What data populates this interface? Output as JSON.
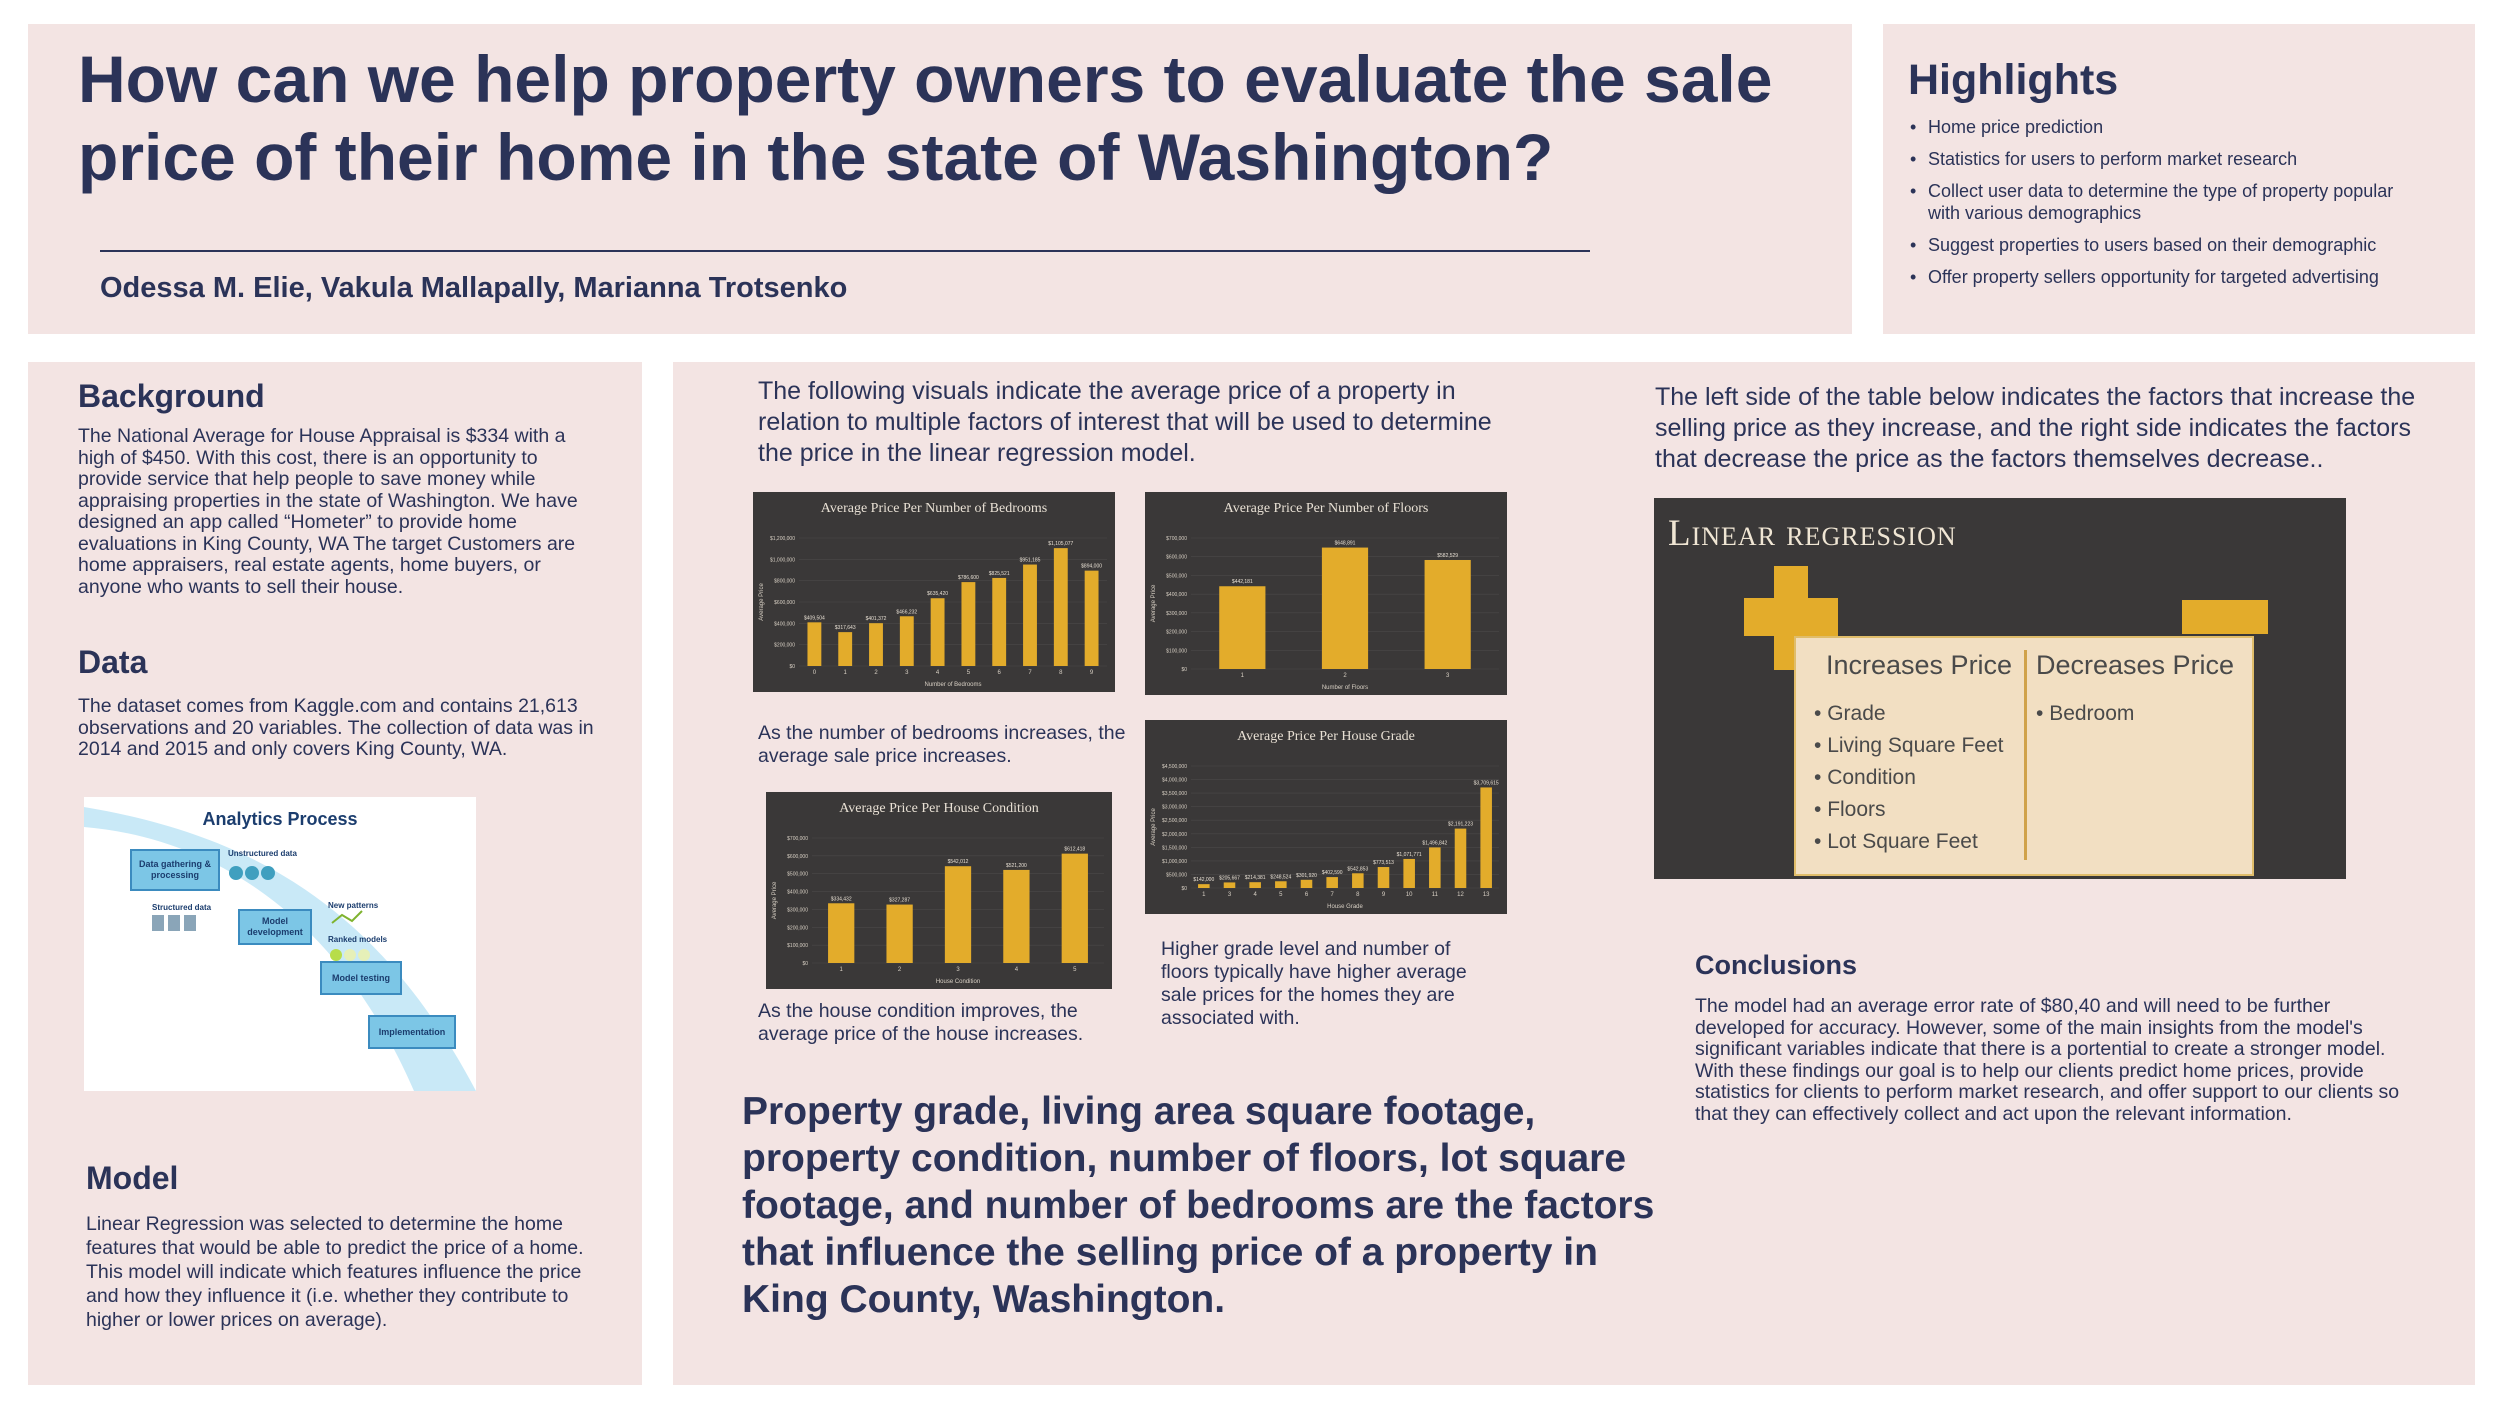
{
  "header": {
    "title": "How can we help property owners to evaluate the sale price of their home in the state of Washington?",
    "authors": "Odessa M. Elie, Vakula Mallapally, Marianna Trotsenko"
  },
  "highlights": {
    "title": "Highlights",
    "items": [
      "Home price prediction",
      "Statistics for users to perform market research",
      "Collect user data to determine the type of property popular with various demographics",
      "Suggest properties to users based on their demographic",
      "Offer property sellers opportunity for targeted advertising"
    ]
  },
  "background": {
    "heading": "Background",
    "text": "The National Average for House Appraisal is $334 with a high of $450. With this cost, there is an  opportunity to provide service that help people to save money while appraising properties in the state of Washington. We have designed an app called “Hometer” to provide home evaluations in  King County, WA The target Customers are home appraisers, real estate agents, home buyers, or anyone who wants to sell their house."
  },
  "data_section": {
    "heading": "Data",
    "text": "The dataset comes from Kaggle.com and contains 21,613 observations and 20 variables. The collection of data was in 2014 and 2015 and only covers King County, WA."
  },
  "analytics": {
    "title": "Analytics Process",
    "steps": [
      "Data gathering & processing",
      "Model development",
      "Model testing",
      "Implementation"
    ],
    "labels": [
      "Unstructured data",
      "Structured data",
      "New patterns",
      "Ranked models"
    ]
  },
  "model": {
    "heading": "Model",
    "text": "Linear Regression was selected to determine the home features that would be able to predict the price of a home. This model will indicate which features influence the price and how they influence it (i.e. whether they contribute to higher or lower prices on average)."
  },
  "visuals_intro": "The following visuals indicate the average price of a property in relation to multiple factors of interest that will be used to determine the price in the linear regression model.",
  "captions": {
    "bedrooms": "As the number of bedrooms increases, the average sale price increases.",
    "condition": "As the house condition improves, the average price of the house increases.",
    "grade": "Higher grade level and number of floors typically have higher average sale prices for the homes they are associated with."
  },
  "conclusion_big": "Property grade, living area square footage, property condition, number of floors, lot square footage, and number of bedrooms are the factors that influence the selling price of a property in King County, Washington.",
  "table_intro": "The left side of the table below indicates the factors that increase the selling price as they increase, and the right side indicates the factors that decrease the price as the factors themselves decrease..",
  "linear_regression": {
    "title": "Linear regression",
    "increases_heading": "Increases Price",
    "decreases_heading": "Decreases Price",
    "increases": [
      "Grade",
      "Living Square Feet",
      "Condition",
      "Floors",
      "Lot Square Feet"
    ],
    "decreases": [
      "Bedroom"
    ]
  },
  "conclusions": {
    "heading": "Conclusions",
    "text": "The model had an average error rate of $80,40 and will need to be further developed for accuracy. However, some of the main insights from the model's significant variables indicate that there is a portential to create a stronger model. With these findings our goal is to help our clients predict home prices, provide statistics for clients to perform market research, and offer support to our clients so that they can effectively collect and act upon the relevant information."
  },
  "colors": {
    "panel": "#f3e4e3",
    "navy": "#2b3358",
    "bar": "#e3ac2b",
    "chart_bg": "#3a3838"
  },
  "chart_data": [
    {
      "id": "bedrooms",
      "type": "bar",
      "title": "Average Price Per Number of Bedrooms",
      "xlabel": "Number of Bedrooms",
      "ylabel": "Average Price",
      "categories": [
        "0",
        "1",
        "2",
        "3",
        "4",
        "5",
        "6",
        "7",
        "8",
        "9"
      ],
      "values": [
        409504,
        317643,
        401372,
        466232,
        635420,
        786600,
        825521,
        951185,
        1105077,
        894000
      ],
      "value_labels": [
        "$409,504",
        "$317,643",
        "$401,372",
        "$466,232",
        "$635,420",
        "$786,600",
        "$825,521",
        "$951,185",
        "$1,105,077",
        "$894,000"
      ],
      "yticks": [
        "$0",
        "$200,000",
        "$400,000",
        "$600,000",
        "$800,000",
        "$1,000,000",
        "$1,200,000"
      ],
      "ylim": [
        0,
        1200000
      ]
    },
    {
      "id": "floors",
      "type": "bar",
      "title": "Average Price Per Number of Floors",
      "xlabel": "Number of Floors",
      "ylabel": "Average Price",
      "categories": [
        "1",
        "2",
        "3"
      ],
      "values": [
        442181,
        648891,
        582529
      ],
      "value_labels": [
        "$442,181",
        "$648,891",
        "$582,529"
      ],
      "yticks": [
        "$0",
        "$100,000",
        "$200,000",
        "$300,000",
        "$400,000",
        "$500,000",
        "$600,000",
        "$700,000"
      ],
      "ylim": [
        0,
        700000
      ]
    },
    {
      "id": "condition",
      "type": "bar",
      "title": "Average Price Per House Condition",
      "xlabel": "House Condition",
      "ylabel": "Average Price",
      "categories": [
        "1",
        "2",
        "3",
        "4",
        "5"
      ],
      "values": [
        334432,
        327287,
        542012,
        521200,
        612418
      ],
      "value_labels": [
        "$334,432",
        "$327,287",
        "$542,012",
        "$521,200",
        "$612,418"
      ],
      "yticks": [
        "$0",
        "$100,000",
        "$200,000",
        "$300,000",
        "$400,000",
        "$500,000",
        "$600,000",
        "$700,000"
      ],
      "ylim": [
        0,
        700000
      ]
    },
    {
      "id": "grade",
      "type": "bar",
      "title": "Average Price Per House Grade",
      "xlabel": "House Grade",
      "ylabel": "Average Price",
      "categories": [
        "1",
        "3",
        "4",
        "5",
        "6",
        "7",
        "8",
        "9",
        "10",
        "11",
        "12",
        "13"
      ],
      "values": [
        142000,
        205667,
        214381,
        248524,
        301920,
        402590,
        542853,
        773513,
        1071771,
        1496842,
        2191223,
        3709615
      ],
      "value_labels": [
        "$142,000",
        "$205,667",
        "$214,381",
        "$248,524",
        "$301,920",
        "$402,590",
        "$542,853",
        "$773,513",
        "$1,071,771",
        "$1,496,842",
        "$2,191,223",
        "$3,709,615"
      ],
      "yticks": [
        "$0",
        "$500,000",
        "$1,000,000",
        "$1,500,000",
        "$2,000,000",
        "$2,500,000",
        "$3,000,000",
        "$3,500,000",
        "$4,000,000",
        "$4,500,000"
      ],
      "ylim": [
        0,
        4500000
      ]
    }
  ]
}
